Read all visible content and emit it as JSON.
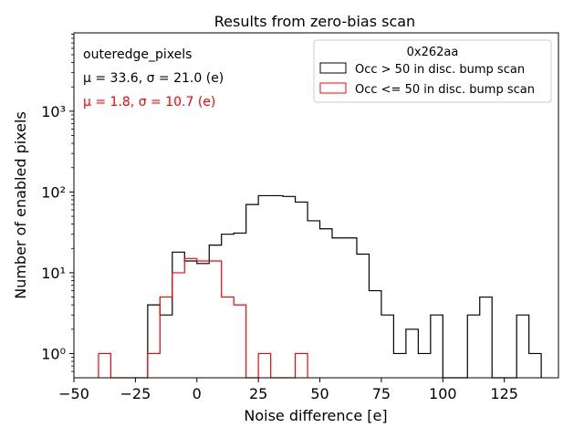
{
  "chart_data": {
    "type": "histogram",
    "title": "Results from zero-bias scan",
    "xlabel": "Noise difference [e]",
    "ylabel": "Number of enabled pixels",
    "yscale": "log",
    "xlim": [
      -50,
      147
    ],
    "ylim_log10": [
      -0.3,
      3.97
    ],
    "x_ticks": [
      -50,
      -25,
      0,
      25,
      50,
      75,
      100,
      125
    ],
    "y_ticks": [
      {
        "exp": 0,
        "label": "10⁰"
      },
      {
        "exp": 1,
        "label": "10¹"
      },
      {
        "exp": 2,
        "label": "10²"
      },
      {
        "exp": 3,
        "label": "10³"
      }
    ],
    "bin_width": 5,
    "legend": {
      "title": "0x262aa",
      "entries": [
        "Occ > 50 in disc. bump scan",
        "Occ <= 50 in disc. bump scan"
      ]
    },
    "annotations": [
      {
        "text": "outeredge_pixels",
        "color": "#000000"
      },
      {
        "text": "μ = 33.6, σ = 21.0 (e)",
        "color": "#000000"
      },
      {
        "text": "μ = 1.8, σ = 10.7 (e)",
        "color": "#ff0000"
      }
    ],
    "series": [
      {
        "name": "Occ > 50 in disc. bump scan",
        "color": "#000000",
        "start": -20,
        "counts": [
          4,
          3,
          18,
          14,
          13,
          22,
          30,
          31,
          70,
          90,
          90,
          88,
          75,
          44,
          35,
          27,
          27,
          17,
          6,
          3,
          1,
          2,
          1,
          3,
          0,
          0,
          3,
          5,
          0,
          0,
          3,
          1
        ]
      },
      {
        "name": "Occ <= 50 in disc. bump scan",
        "color": "#ff0000",
        "start": -40,
        "counts": [
          1,
          0,
          0,
          0,
          1,
          5,
          10,
          15,
          14,
          14,
          5,
          4,
          0,
          1,
          0,
          0,
          1
        ]
      }
    ]
  }
}
